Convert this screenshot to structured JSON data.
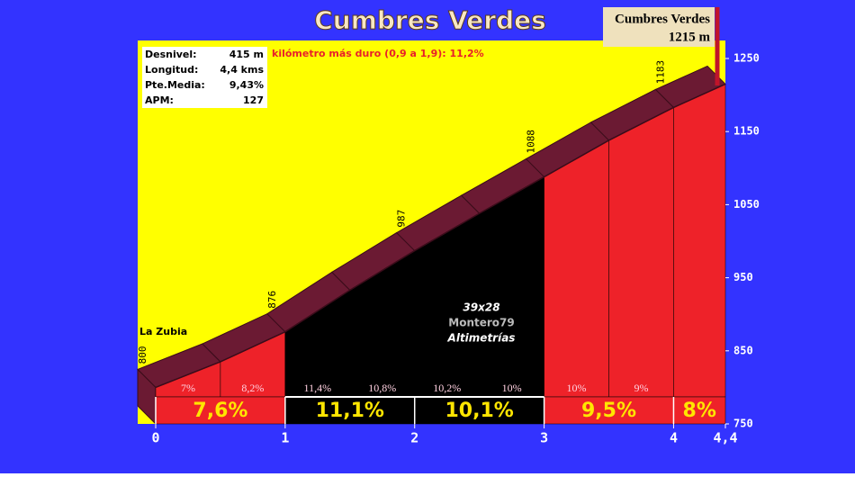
{
  "chart_data": {
    "type": "profile",
    "title": "Cumbres Verdes",
    "summit_name": "Cumbres Verdes",
    "start_label": "La Zubia",
    "hardest": "kilómetro más duro (0,9 a 1,9):  11,2%",
    "stats": [
      {
        "label": "Desnivel:",
        "value": "415 m"
      },
      {
        "label": "Longitud:",
        "value": "4,4 kms"
      },
      {
        "label": "Pte.Media:",
        "value": "9,43%"
      },
      {
        "label": "APM:",
        "value": "127"
      }
    ],
    "credits": [
      "39x28",
      "Montero79",
      "Altimetrías"
    ],
    "x": [
      0,
      0.5,
      1,
      1.5,
      2,
      2.5,
      3,
      3.5,
      4,
      4.4
    ],
    "values": [
      800,
      835,
      876,
      933,
      987,
      1038,
      1088,
      1138,
      1183,
      1215
    ],
    "value_labels": [
      "800",
      null,
      "876",
      null,
      "987",
      null,
      "1088",
      null,
      "1183",
      "1215 m"
    ],
    "fill_colors": [
      "#ee2229",
      "#ee2229",
      "#000000",
      "#000000",
      "#000000",
      "#000000",
      "#ee2229",
      "#ee2229",
      "#ee2229"
    ],
    "half_km_gradients": {
      "values": [
        7,
        8.2,
        11.4,
        10.8,
        10.2,
        10,
        10,
        9
      ],
      "value_labels": [
        "7%",
        "8,2%",
        "11,4%",
        "10,8%",
        "10,2%",
        "10%",
        "10%",
        "9%"
      ]
    },
    "km_gradients": {
      "values": [
        7.6,
        11.1,
        10.1,
        9.5,
        8
      ],
      "value_labels": [
        "7,6%",
        "11,1%",
        "10,1%",
        "9,5%",
        "8%"
      ],
      "colors": [
        "#ee2229",
        "#000000",
        "#000000",
        "#ee2229",
        "#ee2229"
      ]
    },
    "xlim": [
      0,
      4.4
    ],
    "xticks": [
      0,
      1,
      2,
      3,
      4,
      {
        "value": 4.4,
        "label": "4,4"
      }
    ],
    "ylim": [
      750,
      1250
    ],
    "yticks": [
      750,
      850,
      950,
      1050,
      1150,
      1250
    ],
    "background": "#3333ff",
    "sky": "#ffff00",
    "ribbon_color": "#6b1a33"
  }
}
